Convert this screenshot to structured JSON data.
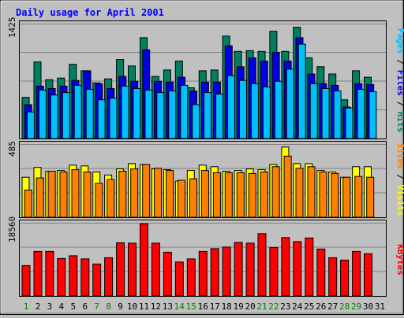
{
  "chart_data": [
    {
      "type": "bar",
      "title": "Daily usage for April 2001",
      "panel": "hits-files-pages",
      "ymax_label": "1425",
      "ylim": [
        0,
        1425
      ],
      "y_axis_legend": [
        {
          "label": "Pages",
          "color": "#00bfff"
        },
        {
          "label": "Files",
          "color": "#0000e0"
        },
        {
          "label": "Hits",
          "color": "#008060"
        }
      ],
      "categories": [
        "1",
        "2",
        "3",
        "4",
        "5",
        "6",
        "7",
        "8",
        "9",
        "10",
        "11",
        "12",
        "13",
        "14",
        "15",
        "16",
        "17",
        "18",
        "19",
        "20",
        "21",
        "22",
        "23",
        "24",
        "25",
        "26",
        "27",
        "28",
        "29",
        "30",
        "31"
      ],
      "series": [
        {
          "name": "Hits",
          "color": "#008060",
          "values": [
            510,
            950,
            730,
            750,
            920,
            840,
            690,
            740,
            980,
            900,
            1250,
            770,
            850,
            960,
            630,
            840,
            850,
            1270,
            1080,
            1090,
            1080,
            1330,
            1080,
            1380,
            1000,
            890,
            800,
            480,
            840,
            760,
            null
          ]
        },
        {
          "name": "Files",
          "color": "#0000e0",
          "values": [
            420,
            650,
            620,
            650,
            720,
            840,
            680,
            620,
            770,
            710,
            1100,
            710,
            700,
            760,
            590,
            700,
            700,
            1150,
            890,
            1000,
            960,
            1070,
            960,
            1250,
            800,
            680,
            660,
            390,
            680,
            670,
            null
          ]
        },
        {
          "name": "Pages",
          "color": "#00bfff",
          "values": [
            330,
            600,
            540,
            570,
            660,
            610,
            480,
            500,
            650,
            620,
            600,
            570,
            590,
            660,
            420,
            570,
            550,
            780,
            720,
            680,
            640,
            710,
            860,
            1170,
            680,
            620,
            590,
            380,
            610,
            580,
            null
          ]
        }
      ]
    },
    {
      "type": "bar",
      "panel": "visits-sites",
      "ymax_label": "485",
      "ylim": [
        0,
        485
      ],
      "y_axis_legend": [
        {
          "label": "Sites",
          "color": "#ff8000"
        },
        {
          "label": "Visits",
          "color": "#ffff00"
        }
      ],
      "categories": [
        "1",
        "2",
        "3",
        "4",
        "5",
        "6",
        "7",
        "8",
        "9",
        "10",
        "11",
        "12",
        "13",
        "14",
        "15",
        "16",
        "17",
        "18",
        "19",
        "20",
        "21",
        "22",
        "23",
        "24",
        "25",
        "26",
        "27",
        "28",
        "29",
        "30",
        "31"
      ],
      "series": [
        {
          "name": "Visits",
          "color": "#ffff00",
          "values": [
            265,
            330,
            305,
            310,
            345,
            340,
            300,
            280,
            320,
            355,
            350,
            320,
            315,
            240,
            310,
            345,
            335,
            305,
            310,
            320,
            315,
            350,
            465,
            355,
            355,
            310,
            300,
            265,
            335,
            335,
            null
          ]
        },
        {
          "name": "Sites",
          "color": "#ff8000",
          "values": [
            180,
            260,
            305,
            300,
            315,
            300,
            225,
            250,
            305,
            320,
            350,
            325,
            310,
            245,
            255,
            310,
            295,
            295,
            295,
            290,
            300,
            335,
            405,
            325,
            335,
            300,
            290,
            265,
            270,
            265,
            null
          ]
        }
      ]
    },
    {
      "type": "bar",
      "panel": "kbytes",
      "ymax_label": "18560",
      "ylim": [
        0,
        18560
      ],
      "y_axis_legend": [
        {
          "label": "KBytes",
          "color": "#ff0000"
        }
      ],
      "categories": [
        "1",
        "2",
        "3",
        "4",
        "5",
        "6",
        "7",
        "8",
        "9",
        "10",
        "11",
        "12",
        "13",
        "14",
        "15",
        "16",
        "17",
        "18",
        "19",
        "20",
        "21",
        "22",
        "23",
        "24",
        "25",
        "26",
        "27",
        "28",
        "29",
        "30",
        "31"
      ],
      "series": [
        {
          "name": "KBytes",
          "color": "#ff0000",
          "values": [
            7700,
            11300,
            11300,
            9500,
            10200,
            9400,
            8100,
            9700,
            13500,
            13400,
            18300,
            13400,
            11100,
            8600,
            9400,
            11300,
            12000,
            12400,
            13600,
            13400,
            15800,
            12300,
            14800,
            13800,
            14700,
            11900,
            9700,
            9100,
            11300,
            10700,
            null
          ]
        }
      ]
    }
  ],
  "x_label_colors": {
    "weekday": "#000000",
    "weekend": "#008000"
  },
  "weekend_days": [
    "1",
    "7",
    "8",
    "14",
    "15",
    "21",
    "22",
    "28",
    "29"
  ],
  "colors": {
    "background": "#c0c0c0",
    "title": "#0000ff",
    "plot_bg": "#c0c0c0",
    "gridline": "#808080"
  }
}
